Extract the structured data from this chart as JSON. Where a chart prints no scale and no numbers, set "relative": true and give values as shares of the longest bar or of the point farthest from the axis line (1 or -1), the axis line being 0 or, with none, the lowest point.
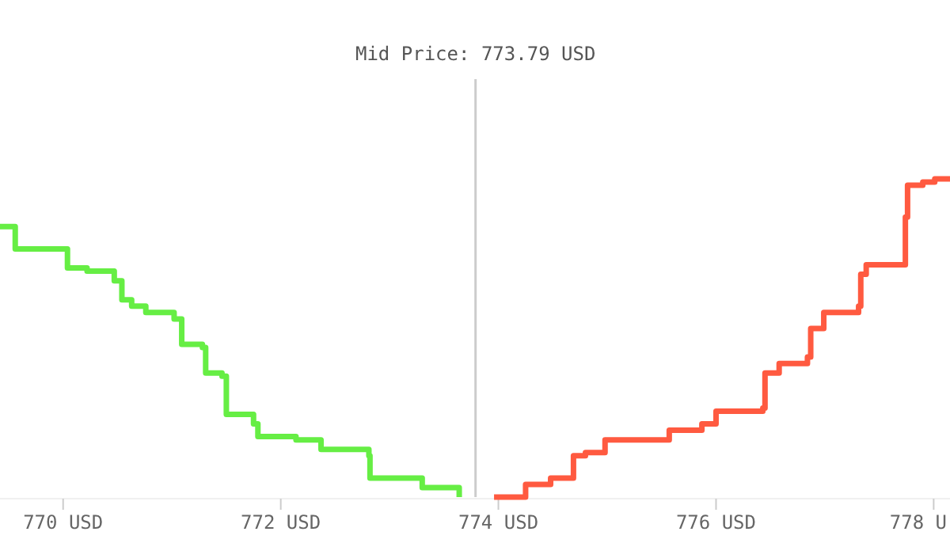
{
  "chart_data": {
    "type": "step",
    "relative": true,
    "xlim": [
      769.42,
      778.15
    ],
    "xticks": [
      {
        "value": 770,
        "label": "770 USD"
      },
      {
        "value": 772,
        "label": "772 USD"
      },
      {
        "value": 774,
        "label": "774 USD"
      },
      {
        "value": 776,
        "label": "776 USD"
      },
      {
        "value": 778,
        "label": "778 U"
      }
    ],
    "series": [
      {
        "color": "#66ee44",
        "x": [
          769.42,
          769.56,
          770.04,
          770.22,
          770.47,
          770.54,
          770.63,
          770.76,
          771.02,
          771.09,
          771.28,
          771.31,
          771.46,
          771.5,
          771.75,
          771.79,
          772.14,
          772.37,
          772.81,
          772.82,
          773.3,
          773.64
        ],
        "values": [
          0.85,
          0.78,
          0.72,
          0.71,
          0.68,
          0.62,
          0.6,
          0.58,
          0.56,
          0.48,
          0.47,
          0.39,
          0.38,
          0.26,
          0.23,
          0.19,
          0.18,
          0.15,
          0.13,
          0.06,
          0.03,
          0
        ]
      },
      {
        "color": "#ff5a40",
        "x": [
          773.96,
          774.25,
          774.48,
          774.69,
          774.8,
          774.98,
          775.24,
          775.57,
          775.87,
          776,
          776.43,
          776.45,
          776.58,
          776.84,
          776.87,
          776.99,
          777.31,
          777.33,
          777.38,
          777.74,
          777.76,
          777.9,
          778.01,
          778.15
        ],
        "values": [
          0,
          0.04,
          0.06,
          0.13,
          0.14,
          0.18,
          0.18,
          0.21,
          0.23,
          0.27,
          0.28,
          0.39,
          0.42,
          0.44,
          0.53,
          0.58,
          0.6,
          0.7,
          0.73,
          0.88,
          0.98,
          0.99,
          1,
          1
        ]
      }
    ],
    "ref_lines": [
      {
        "axis": "x",
        "value": 773.79,
        "label": "Mid Price: 773.79 USD",
        "color": "#cccccc"
      }
    ],
    "grid": false
  }
}
